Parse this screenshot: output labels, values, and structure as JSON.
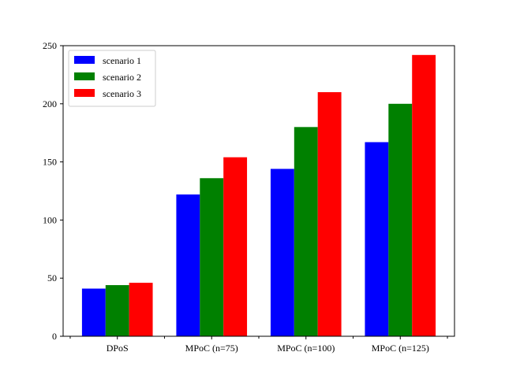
{
  "chart_data": {
    "type": "bar",
    "categories": [
      "DPoS",
      "MPoC (n=75)",
      "MPoC (n=100)",
      "MPoC (n=125)"
    ],
    "series": [
      {
        "name": "scenario 1",
        "color": "#0000ff",
        "values": [
          41,
          122,
          144,
          167
        ]
      },
      {
        "name": "scenario 2",
        "color": "#008000",
        "values": [
          44,
          136,
          180,
          200
        ]
      },
      {
        "name": "scenario 3",
        "color": "#ff0000",
        "values": [
          46,
          154,
          210,
          242
        ]
      }
    ],
    "yticks": [
      "0",
      "50",
      "100",
      "150",
      "200",
      "250"
    ],
    "ylim": [
      0,
      250
    ],
    "legend_position": "top-left",
    "grid": false
  }
}
